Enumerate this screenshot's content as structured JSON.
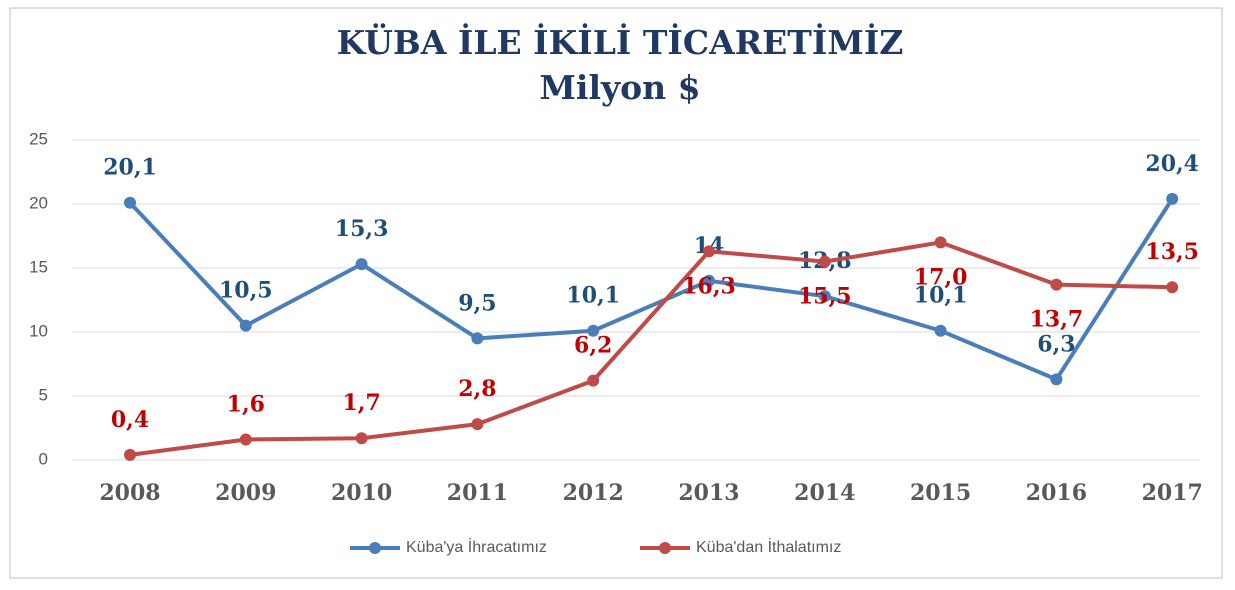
{
  "chart_data": {
    "type": "line",
    "title": "KÜBA İLE İKİLİ TİCARETİMİZ",
    "subtitle": "Milyon $",
    "categories": [
      "2008",
      "2009",
      "2010",
      "2011",
      "2012",
      "2013",
      "2014",
      "2015",
      "2016",
      "2017"
    ],
    "series": [
      {
        "name": "Küba'ya İhracatımız",
        "color": "#4a7ebb",
        "label_color": "#1f4e79",
        "values": [
          20.1,
          10.5,
          15.3,
          9.5,
          10.1,
          14,
          12.8,
          10.1,
          6.3,
          20.4
        ],
        "value_labels": [
          "20,1",
          "10,5",
          "15,3",
          "9,5",
          "10,1",
          "14",
          "12,8",
          "10,1",
          "6,3",
          "20,4"
        ]
      },
      {
        "name": "Küba'dan İthalatımız",
        "color": "#be4b48",
        "label_color": "#c00000",
        "values": [
          0.4,
          1.6,
          1.7,
          2.8,
          6.2,
          16.3,
          15.5,
          17.0,
          13.7,
          13.5
        ],
        "value_labels": [
          "0,4",
          "1,6",
          "1,7",
          "2,8",
          "6,2",
          "16,3",
          "15,5",
          "17,0",
          "13,7",
          "13,5"
        ]
      }
    ],
    "ylim": [
      0,
      25
    ],
    "yticks": [
      0,
      5,
      10,
      15,
      20,
      25
    ],
    "grid": true,
    "legend": "bottom"
  }
}
